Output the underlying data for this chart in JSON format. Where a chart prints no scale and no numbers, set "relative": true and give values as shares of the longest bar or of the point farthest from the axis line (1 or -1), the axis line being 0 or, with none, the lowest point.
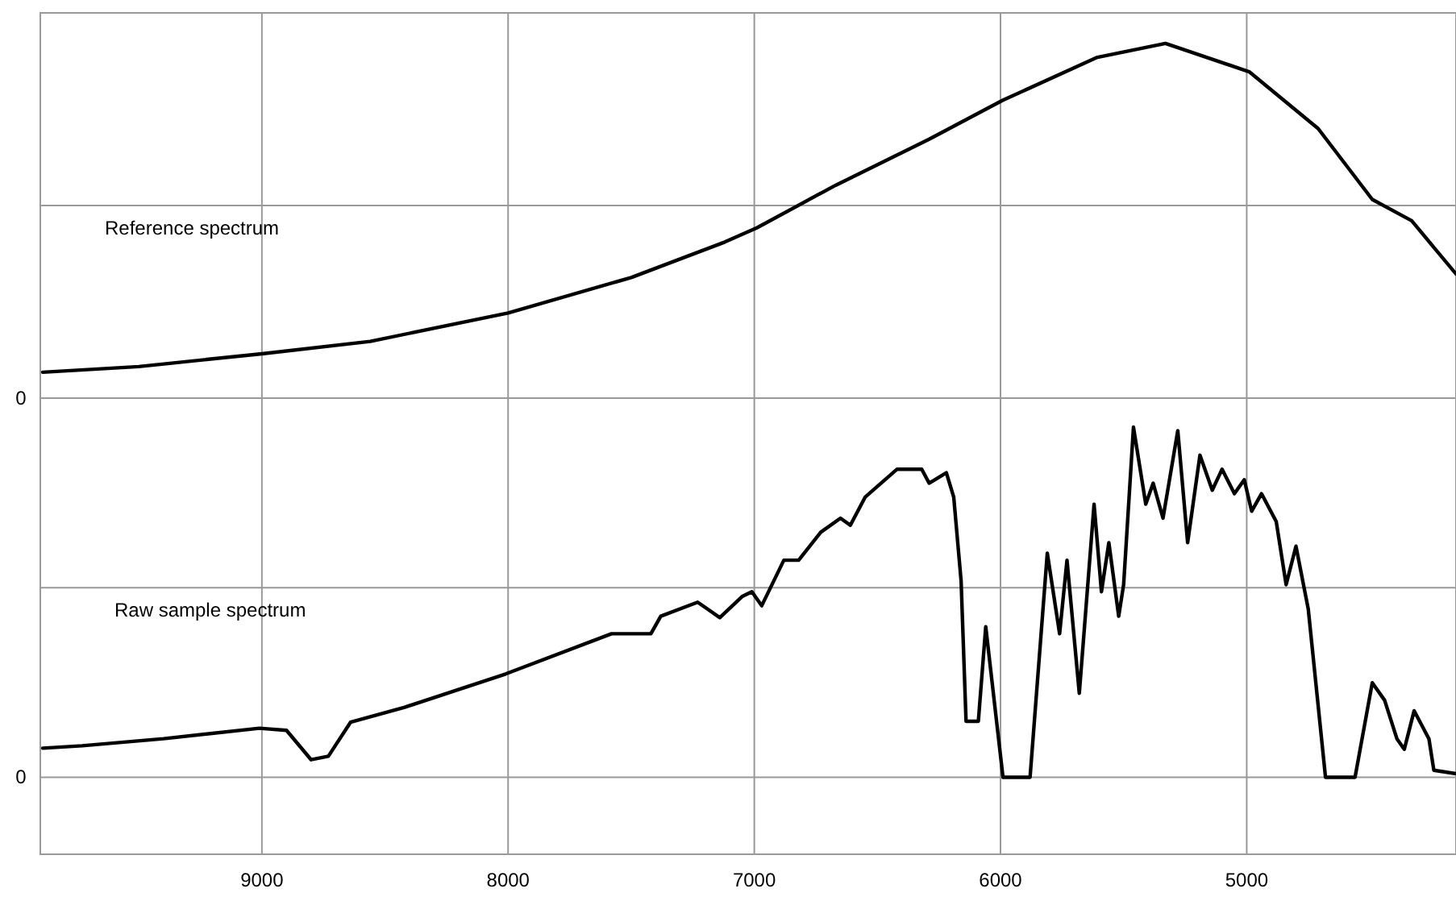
{
  "chart_data": [
    {
      "type": "line",
      "relative": true,
      "x": [
        9890,
        9500,
        9000,
        8560,
        8000,
        7500,
        7120,
        6990,
        6670,
        6290,
        5990,
        5610,
        5330,
        4990,
        4710,
        4490,
        4330,
        4150
      ],
      "series": [
        {
          "name": "Reference spectrum",
          "color": "#000000",
          "values": [
            0.073,
            0.089,
            0.125,
            0.16,
            0.24,
            0.34,
            0.44,
            0.48,
            0.6,
            0.73,
            0.84,
            0.96,
            1.0,
            0.92,
            0.76,
            0.56,
            0.5,
            0.35
          ]
        }
      ],
      "xlim": [
        9900,
        4150
      ],
      "xticks": [
        9000,
        8000,
        7000,
        6000,
        5000
      ],
      "grid": true,
      "tick_labels": false,
      "annotations": [
        "0"
      ]
    },
    {
      "type": "line",
      "relative": true,
      "x": [
        9890,
        9730,
        9400,
        9010,
        8900,
        8800,
        8730,
        8640,
        8420,
        8010,
        7580,
        7420,
        7380,
        7230,
        7140,
        7050,
        7010,
        6970,
        6880,
        6820,
        6730,
        6650,
        6610,
        6550,
        6420,
        6320,
        6290,
        6220,
        6190,
        6160,
        6140,
        6090,
        6060,
        5990,
        5880,
        5810,
        5760,
        5730,
        5680,
        5620,
        5590,
        5560,
        5520,
        5500,
        5460,
        5410,
        5380,
        5340,
        5280,
        5240,
        5190,
        5140,
        5100,
        5050,
        5010,
        4980,
        4940,
        4880,
        4840,
        4800,
        4750,
        4680,
        4560,
        4490,
        4440,
        4390,
        4360,
        4320,
        4260,
        4240,
        4150
      ],
      "series": [
        {
          "name": "Raw sample spectrum",
          "color": "#000000",
          "values": [
            0.083,
            0.09,
            0.11,
            0.14,
            0.134,
            0.05,
            0.06,
            0.157,
            0.2,
            0.295,
            0.41,
            0.41,
            0.46,
            0.5,
            0.456,
            0.516,
            0.53,
            0.49,
            0.62,
            0.62,
            0.7,
            0.74,
            0.72,
            0.8,
            0.88,
            0.88,
            0.84,
            0.87,
            0.8,
            0.56,
            0.16,
            0.16,
            0.43,
            0,
            0,
            0.64,
            0.41,
            0.62,
            0.24,
            0.78,
            0.53,
            0.67,
            0.46,
            0.55,
            1.0,
            0.78,
            0.84,
            0.74,
            0.99,
            0.67,
            0.92,
            0.82,
            0.88,
            0.81,
            0.85,
            0.76,
            0.81,
            0.73,
            0.55,
            0.66,
            0.48,
            0,
            0,
            0.27,
            0.22,
            0.11,
            0.08,
            0.19,
            0.11,
            0.02,
            0.01
          ]
        }
      ],
      "xlim": [
        9900,
        4150
      ],
      "xticks": [
        9000,
        8000,
        7000,
        6000,
        5000
      ],
      "grid": true,
      "tick_labels": "x",
      "annotations": [
        "0"
      ]
    }
  ]
}
